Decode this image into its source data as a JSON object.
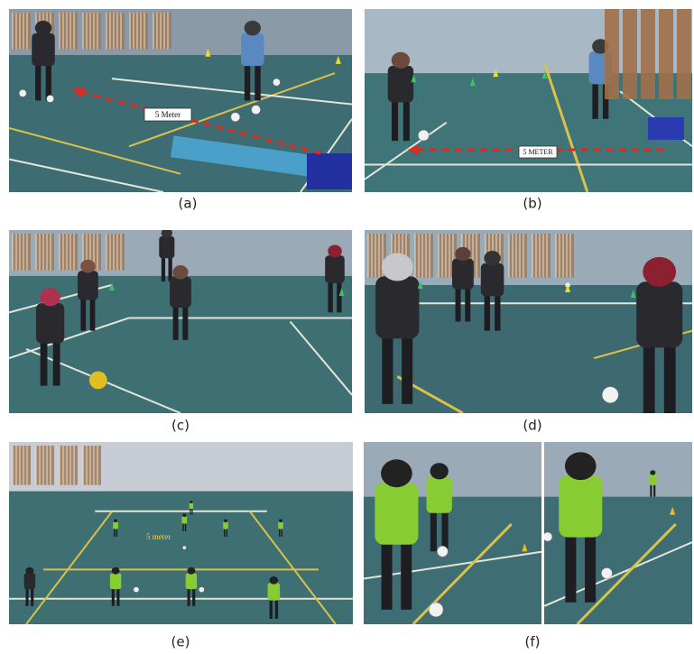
{
  "panels": [
    {
      "label": "(a)",
      "annotation": "5 Meter"
    },
    {
      "label": "(b)",
      "annotation": "5 METER"
    },
    {
      "label": "(c)"
    },
    {
      "label": "(d)"
    },
    {
      "label": "(e)",
      "annotation": "5 meter"
    },
    {
      "label": "(f)"
    }
  ]
}
